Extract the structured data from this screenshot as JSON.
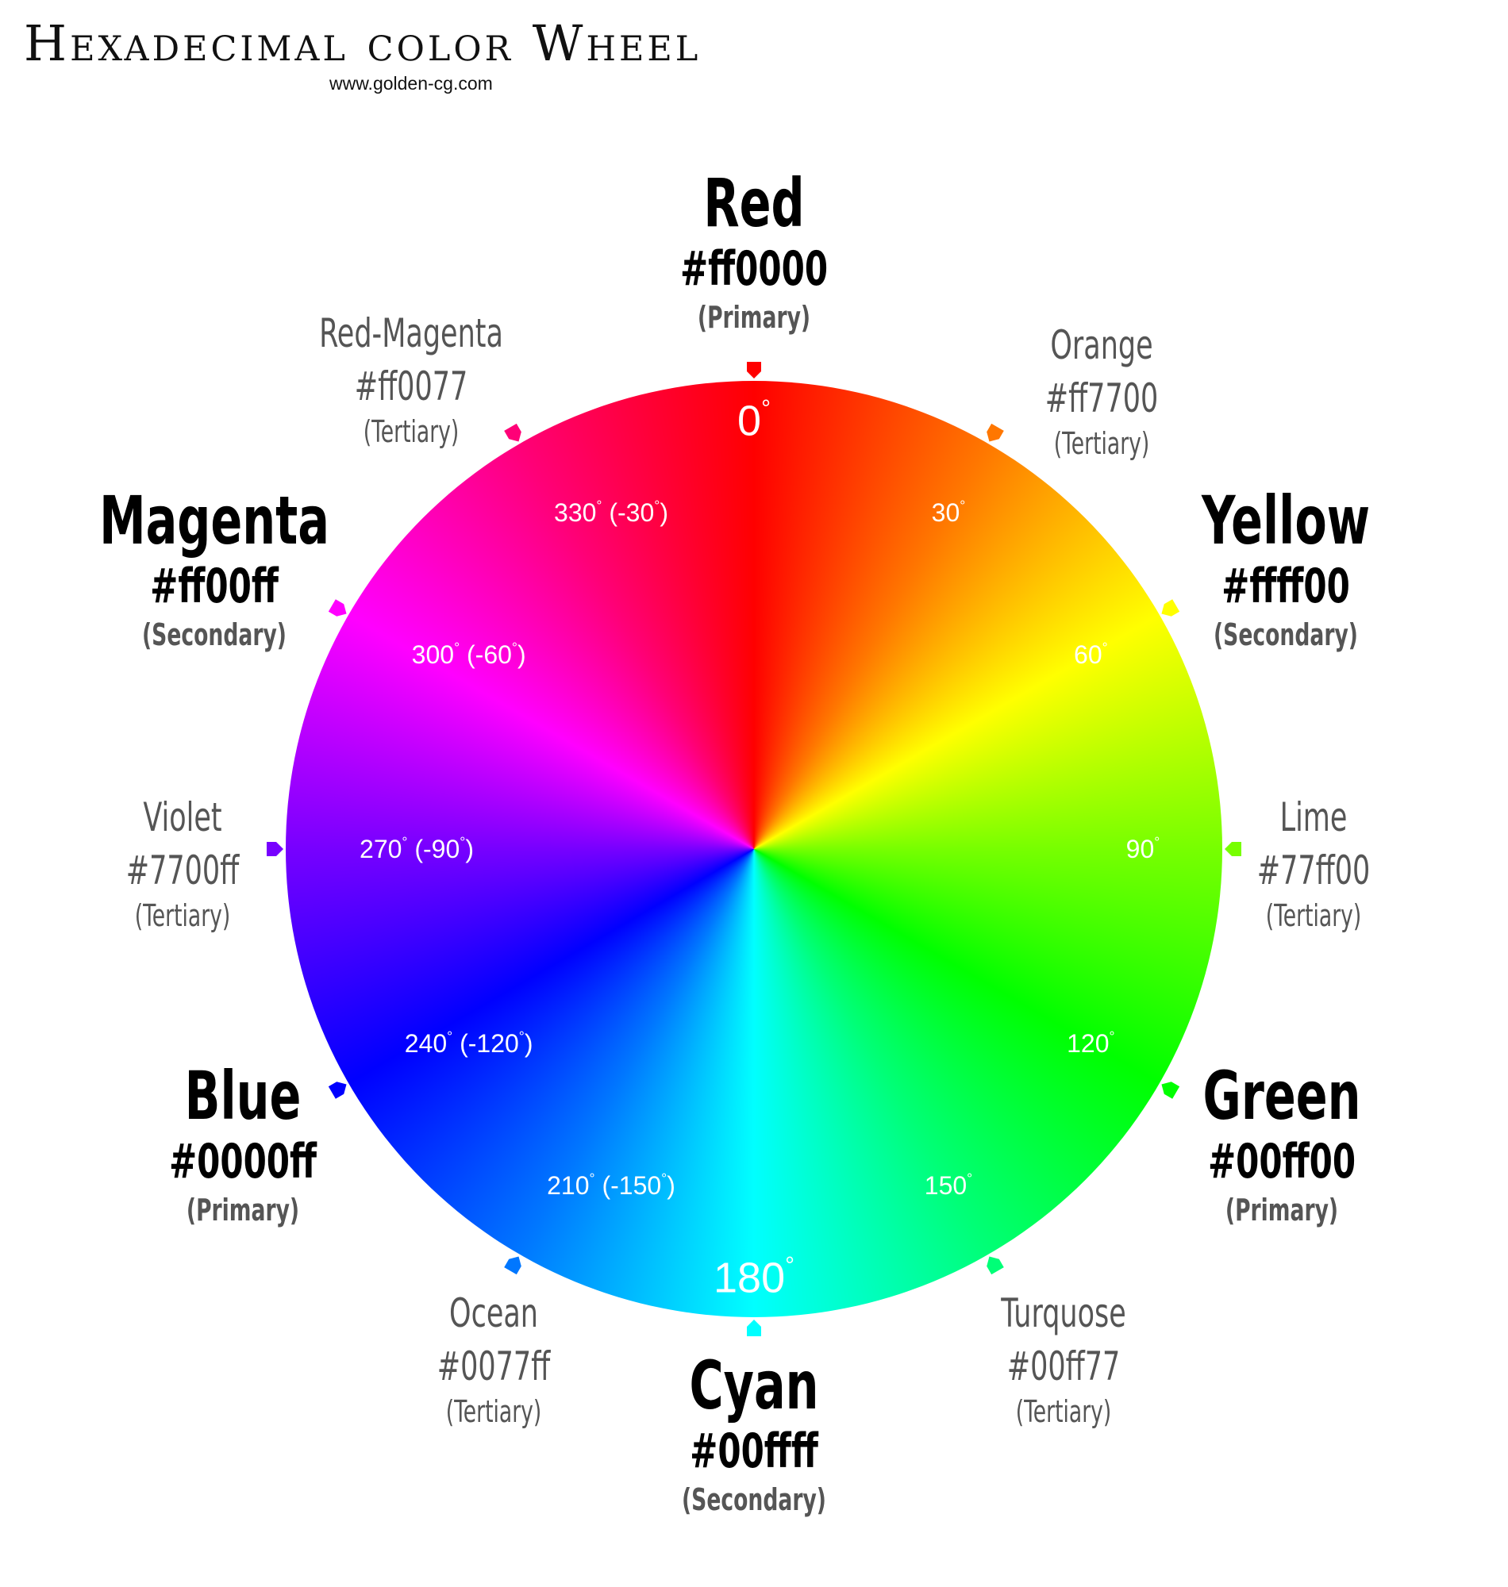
{
  "header": {
    "title": "Hexadecimal color Wheel",
    "subtitle": "www.golden-cg.com"
  },
  "wheel": {
    "degree_markers": [
      {
        "angle": 0,
        "text": "0",
        "suffix": "",
        "size": "major"
      },
      {
        "angle": 30,
        "text": "30",
        "suffix": "",
        "size": "minor"
      },
      {
        "angle": 60,
        "text": "60",
        "suffix": "",
        "size": "minor"
      },
      {
        "angle": 90,
        "text": "90",
        "suffix": "",
        "size": "minor"
      },
      {
        "angle": 120,
        "text": "120",
        "suffix": "",
        "size": "minor"
      },
      {
        "angle": 150,
        "text": "150",
        "suffix": "",
        "size": "minor"
      },
      {
        "angle": 180,
        "text": "180",
        "suffix": "",
        "size": "major"
      },
      {
        "angle": 210,
        "text": "210",
        "suffix": " (-150",
        "size": "minor"
      },
      {
        "angle": 240,
        "text": "240",
        "suffix": " (-120",
        "size": "minor"
      },
      {
        "angle": 270,
        "text": "270",
        "suffix": " (-90",
        "size": "minor"
      },
      {
        "angle": 300,
        "text": "300",
        "suffix": " (-60",
        "size": "minor"
      },
      {
        "angle": 330,
        "text": "330",
        "suffix": " (-30",
        "size": "minor"
      }
    ]
  },
  "colors": [
    {
      "angle": 0,
      "name": "Red",
      "hex": "#ff0000",
      "kind": "(Primary)",
      "tier": "major"
    },
    {
      "angle": 30,
      "name": "Orange",
      "hex": "#ff7700",
      "kind": "(Tertiary)",
      "tier": "minor"
    },
    {
      "angle": 60,
      "name": "Yellow",
      "hex": "#ffff00",
      "kind": "(Secondary)",
      "tier": "major"
    },
    {
      "angle": 90,
      "name": "Lime",
      "hex": "#77ff00",
      "kind": "(Tertiary)",
      "tier": "minor"
    },
    {
      "angle": 120,
      "name": "Green",
      "hex": "#00ff00",
      "kind": "(Primary)",
      "tier": "major"
    },
    {
      "angle": 150,
      "name": "Turquose",
      "hex": "#00ff77",
      "kind": "(Tertiary)",
      "tier": "minor"
    },
    {
      "angle": 180,
      "name": "Cyan",
      "hex": "#00ffff",
      "kind": "(Secondary)",
      "tier": "major"
    },
    {
      "angle": 210,
      "name": "Ocean",
      "hex": "#0077ff",
      "kind": "(Tertiary)",
      "tier": "minor"
    },
    {
      "angle": 240,
      "name": "Blue",
      "hex": "#0000ff",
      "kind": "(Primary)",
      "tier": "major"
    },
    {
      "angle": 270,
      "name": "Violet",
      "hex": "#7700ff",
      "kind": "(Tertiary)",
      "tier": "minor"
    },
    {
      "angle": 300,
      "name": "Magenta",
      "hex": "#ff00ff",
      "kind": "(Secondary)",
      "tier": "major"
    },
    {
      "angle": 330,
      "name": "Red-Magenta",
      "hex": "#ff0077",
      "kind": "(Tertiary)",
      "tier": "minor"
    }
  ]
}
